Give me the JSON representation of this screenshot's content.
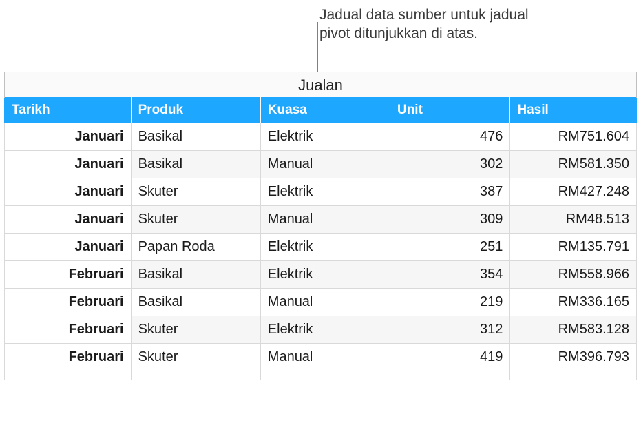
{
  "caption": {
    "line1": "Jadual data sumber untuk jadual",
    "line2": "pivot ditunjukkan di atas."
  },
  "table": {
    "title": "Jualan",
    "columns": [
      "Tarikh",
      "Produk",
      "Kuasa",
      "Unit",
      "Hasil"
    ],
    "rows": [
      {
        "tarikh": "Januari",
        "produk": "Basikal",
        "kuasa": "Elektrik",
        "unit": "476",
        "hasil": "RM751.604"
      },
      {
        "tarikh": "Januari",
        "produk": "Basikal",
        "kuasa": "Manual",
        "unit": "302",
        "hasil": "RM581.350"
      },
      {
        "tarikh": "Januari",
        "produk": "Skuter",
        "kuasa": "Elektrik",
        "unit": "387",
        "hasil": "RM427.248"
      },
      {
        "tarikh": "Januari",
        "produk": "Skuter",
        "kuasa": "Manual",
        "unit": "309",
        "hasil": "RM48.513"
      },
      {
        "tarikh": "Januari",
        "produk": "Papan Roda",
        "kuasa": "Elektrik",
        "unit": "251",
        "hasil": "RM135.791"
      },
      {
        "tarikh": "Februari",
        "produk": "Basikal",
        "kuasa": "Elektrik",
        "unit": "354",
        "hasil": "RM558.966"
      },
      {
        "tarikh": "Februari",
        "produk": "Basikal",
        "kuasa": "Manual",
        "unit": "219",
        "hasil": "RM336.165"
      },
      {
        "tarikh": "Februari",
        "produk": "Skuter",
        "kuasa": "Elektrik",
        "unit": "312",
        "hasil": "RM583.128"
      },
      {
        "tarikh": "Februari",
        "produk": "Skuter",
        "kuasa": "Manual",
        "unit": "419",
        "hasil": "RM396.793"
      }
    ]
  },
  "style": {
    "header_bg": "#1ea7ff",
    "header_fg": "#ffffff",
    "row_alt_bg": "#f6f6f6",
    "border_color": "#d9d9d9",
    "title_fontsize": 22,
    "header_fontsize": 19,
    "cell_fontsize": 20,
    "caption_fontsize": 21
  }
}
